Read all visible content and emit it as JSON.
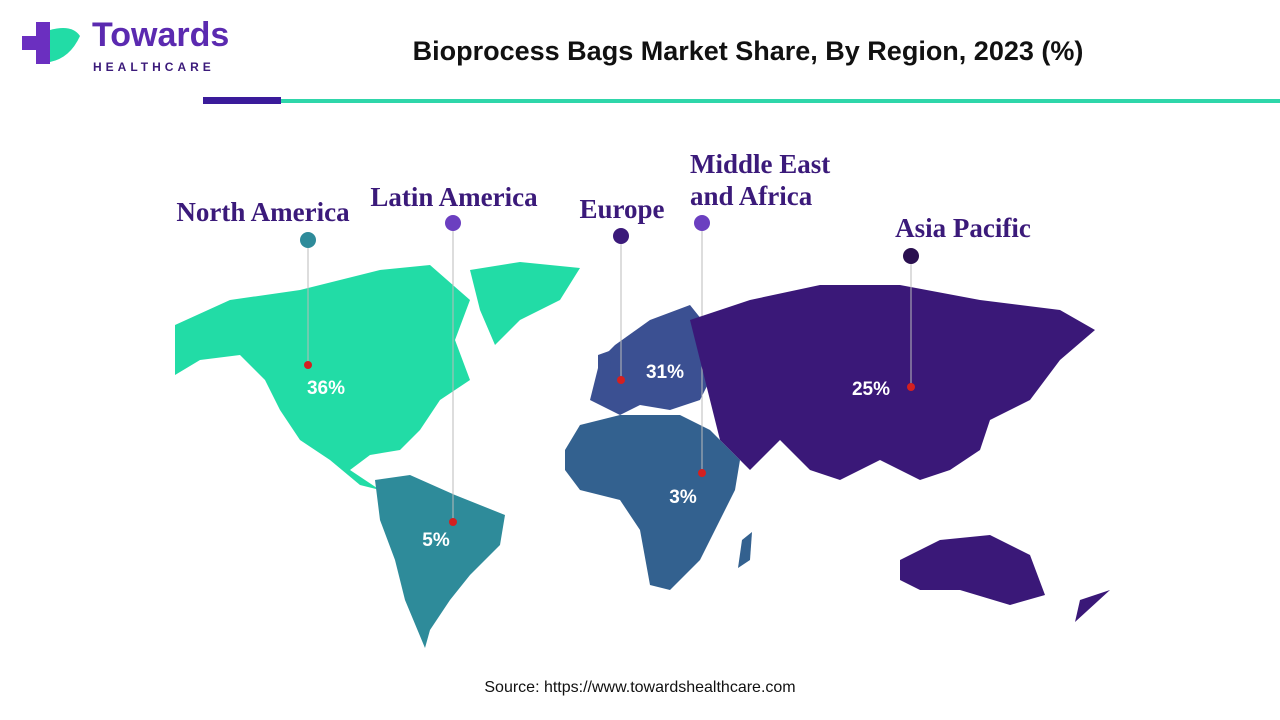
{
  "header": {
    "logo_name": "Towards",
    "logo_sub": "HEALTHCARE"
  },
  "chart_data": {
    "type": "map",
    "title": "Bioprocess Bags Market Share, By Region, 2023 (%)",
    "categories": [
      "North America",
      "Latin America",
      "Europe",
      "Middle East and Africa",
      "Asia Pacific"
    ],
    "values": [
      36,
      5,
      31,
      3,
      25
    ],
    "value_labels": [
      "36%",
      "5%",
      "31%",
      "3%",
      "25%"
    ],
    "colors": [
      "#22dca6",
      "#2e8b9a",
      "#3b5092",
      "#33618f",
      "#3a1878"
    ]
  },
  "source": "Source: https://www.towardshealthcare.com"
}
